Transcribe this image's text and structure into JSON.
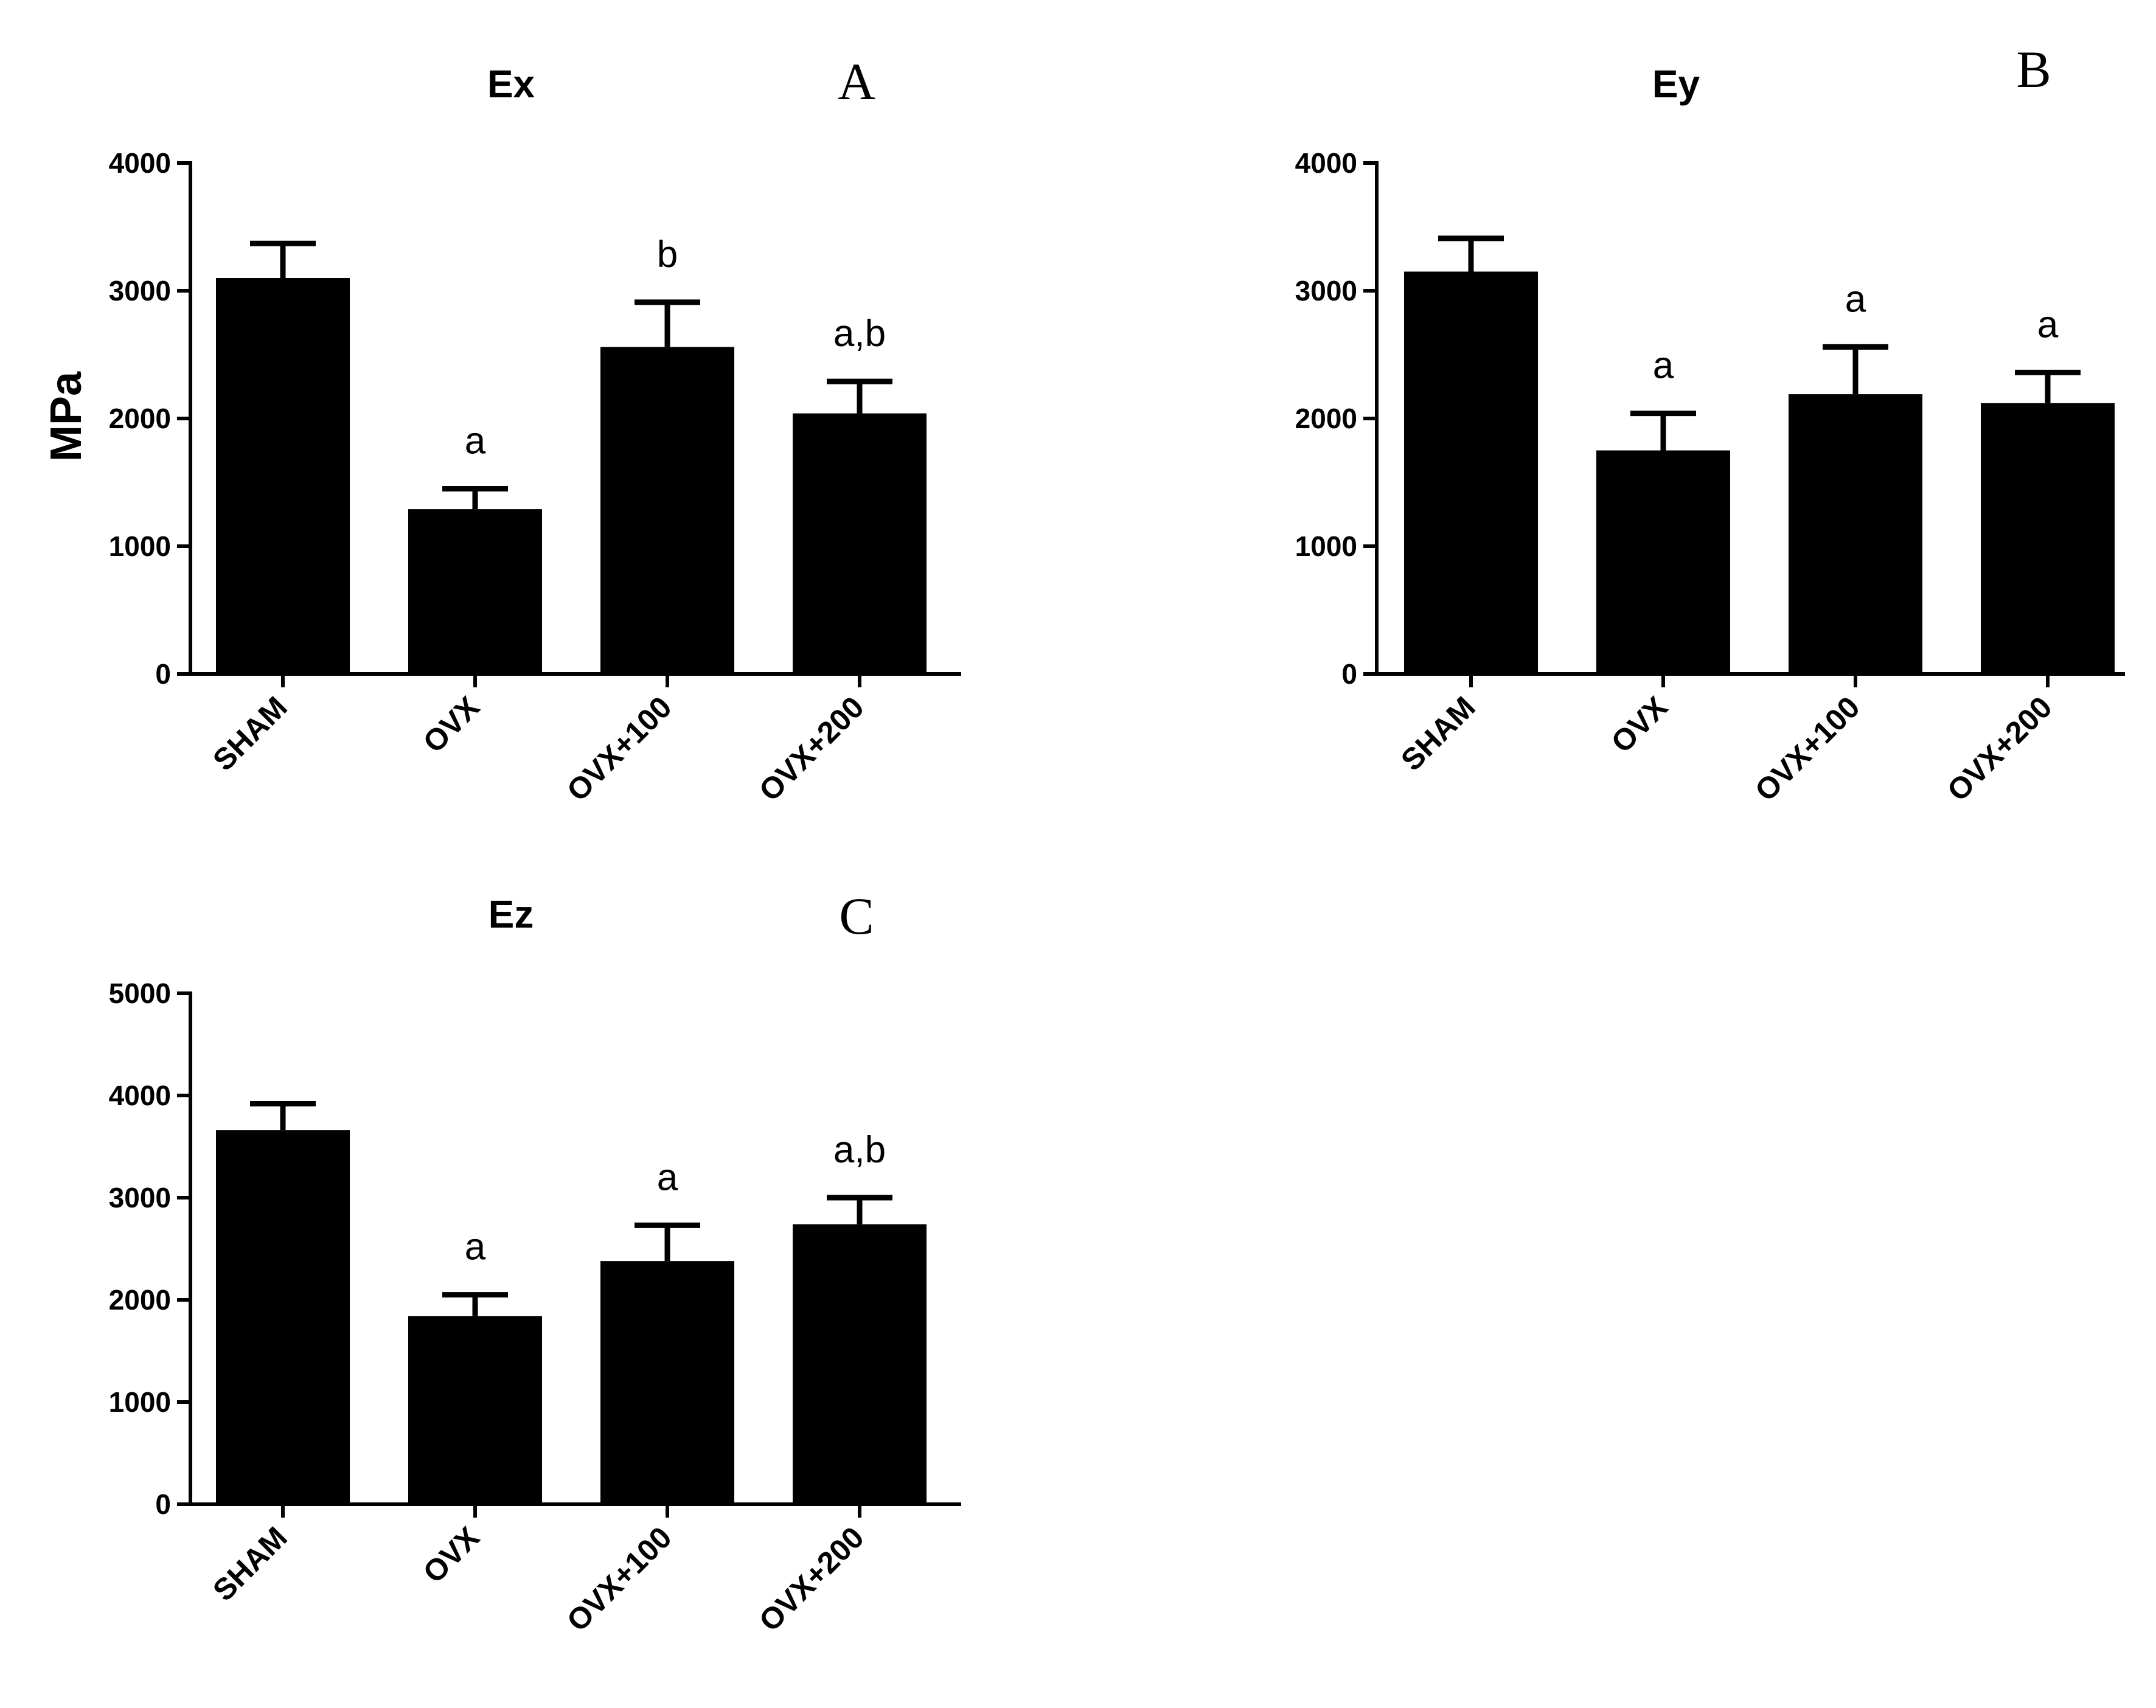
{
  "chart_data": [
    {
      "type": "bar",
      "panel": "A",
      "title": "Ex",
      "ylabel": "MPa",
      "categories": [
        "SHAM",
        "OVX",
        "OVX+100",
        "OVX+200"
      ],
      "values": [
        3100,
        1290,
        2560,
        2040
      ],
      "errors": [
        270,
        160,
        350,
        250
      ],
      "annotations": [
        "",
        "a",
        "b",
        "a,b"
      ],
      "ylim": [
        0,
        4000
      ],
      "yticks": [
        "0",
        "1000",
        "2000",
        "3000",
        "4000"
      ],
      "color": "#000000"
    },
    {
      "type": "bar",
      "panel": "B",
      "title": "Ey",
      "ylabel": "",
      "categories": [
        "SHAM",
        "OVX",
        "OVX+100",
        "OVX+200"
      ],
      "values": [
        3150,
        1750,
        2190,
        2120
      ],
      "errors": [
        260,
        290,
        370,
        240
      ],
      "annotations": [
        "",
        "a",
        "a",
        "a"
      ],
      "ylim": [
        0,
        4000
      ],
      "yticks": [
        "0",
        "1000",
        "2000",
        "3000",
        "4000"
      ],
      "color": "#000000"
    },
    {
      "type": "bar",
      "panel": "C",
      "title": "Ez",
      "ylabel": "",
      "categories": [
        "SHAM",
        "OVX",
        "OVX+100",
        "OVX+200"
      ],
      "values": [
        3660,
        1840,
        2380,
        2740
      ],
      "errors": [
        260,
        210,
        350,
        260
      ],
      "annotations": [
        "",
        "a",
        "a",
        "a,b"
      ],
      "ylim": [
        0,
        5000
      ],
      "yticks": [
        "0",
        "1000",
        "2000",
        "3000",
        "4000",
        "5000"
      ],
      "color": "#000000"
    }
  ]
}
